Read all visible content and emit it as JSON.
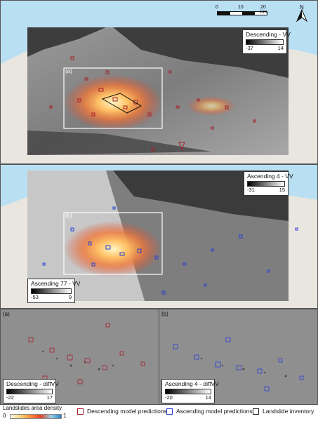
{
  "scale": {
    "zero": "0",
    "mid": "10",
    "end": "20 km"
  },
  "north": {
    "label": "N"
  },
  "panel1": {
    "legend_title": "Descending - VV",
    "min": "-37",
    "max": "14",
    "inset_label": "(a)"
  },
  "panel2": {
    "legend_title": "Ascending 4 - VV",
    "min": "-31",
    "max": "15",
    "legend2_title": "Ascending 77 - VV",
    "min2": "-53",
    "max2": "9",
    "inset_label": "(b)"
  },
  "panel3a": {
    "label": "(a)",
    "legend_title": "Descending - diffVV",
    "min": "-22",
    "max": "17"
  },
  "panel3b": {
    "label": "(b)",
    "legend_title": "Ascending 4 - diffVV",
    "min": "-20",
    "max": "14"
  },
  "legend": {
    "density_title": "Landslides area density",
    "density_min": "0",
    "density_max": "1",
    "items": [
      {
        "label": "Descending model predictions",
        "color": "#a3202a"
      },
      {
        "label": "Ascending model predictions",
        "color": "#2a3fd1"
      },
      {
        "label": "Landslide inventory",
        "color": "#222222"
      }
    ]
  },
  "colors": {
    "sea": "#b9dff2",
    "land": "#e9e6df",
    "sar_dark": "#3a3a3a",
    "sar_mid": "#8a8a8a"
  }
}
